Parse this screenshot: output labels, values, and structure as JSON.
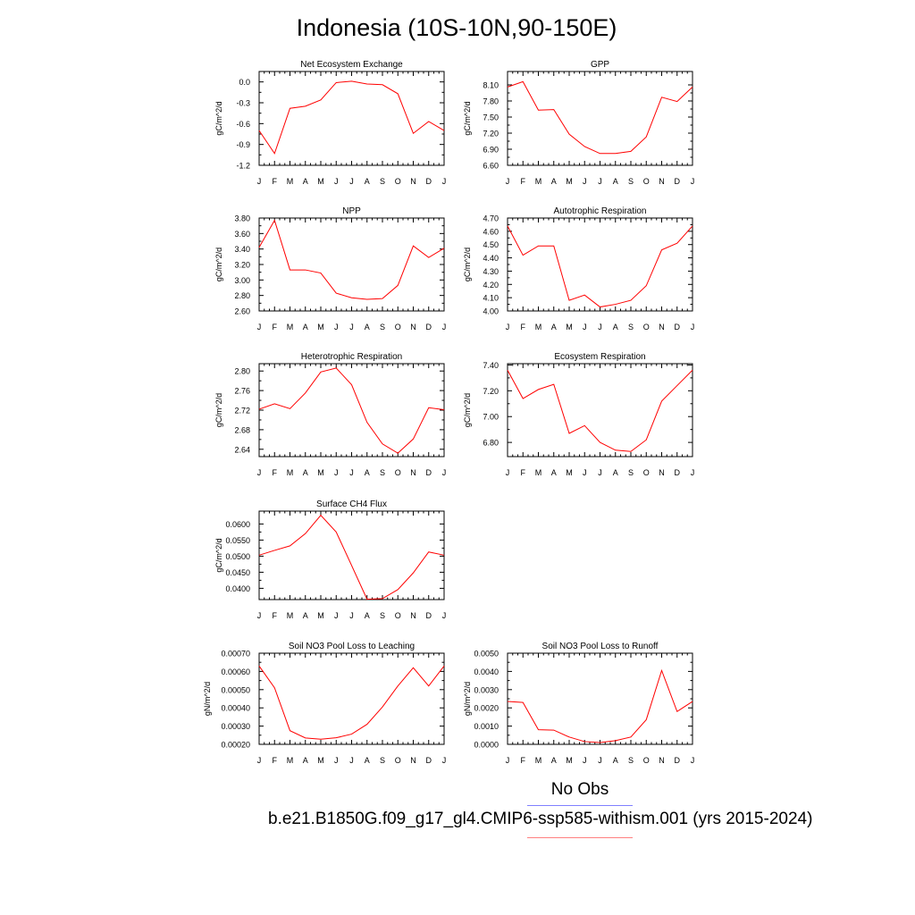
{
  "page": {
    "title": "Indonesia (10S-10N,90-150E)",
    "legend_obs_label": "No Obs",
    "legend_case_label": "b.e21.B1850G.f09_g17_gl4.CMIP6-ssp585-withism.001 (yrs 2015-2024)",
    "obs_line_color": "#8080ff",
    "case_line_color": "#ff8080"
  },
  "chart_data": [
    {
      "type": "line",
      "title": "Net Ecosystem Exchange",
      "ylabel": "gC/m^2/d",
      "categories": [
        "J",
        "F",
        "M",
        "A",
        "M",
        "J",
        "J",
        "A",
        "S",
        "O",
        "N",
        "D",
        "J"
      ],
      "yticks": [
        "0.0",
        "-0.3",
        "-0.6",
        "-0.9",
        "-1.2"
      ],
      "ylim": [
        -1.2,
        0.15
      ],
      "values": [
        -0.7,
        -1.03,
        -0.38,
        -0.35,
        -0.26,
        -0.01,
        0.01,
        -0.03,
        -0.04,
        -0.17,
        -0.74,
        -0.57,
        -0.7
      ],
      "line_color": "#ff0000"
    },
    {
      "type": "line",
      "title": "GPP",
      "ylabel": "gC/m^2/d",
      "categories": [
        "J",
        "F",
        "M",
        "A",
        "M",
        "J",
        "J",
        "A",
        "S",
        "O",
        "N",
        "D",
        "J"
      ],
      "yticks": [
        "8.10",
        "7.80",
        "7.50",
        "7.20",
        "6.90",
        "6.60"
      ],
      "ylim": [
        6.6,
        8.35
      ],
      "values": [
        8.06,
        8.16,
        7.63,
        7.64,
        7.18,
        6.95,
        6.82,
        6.82,
        6.86,
        7.13,
        7.87,
        7.79,
        8.06
      ],
      "line_color": "#ff0000"
    },
    {
      "type": "line",
      "title": "NPP",
      "ylabel": "gC/m^2/d",
      "categories": [
        "J",
        "F",
        "M",
        "A",
        "M",
        "J",
        "J",
        "A",
        "S",
        "O",
        "N",
        "D",
        "J"
      ],
      "yticks": [
        "3.80",
        "3.60",
        "3.40",
        "3.20",
        "3.00",
        "2.80",
        "2.60"
      ],
      "ylim": [
        2.6,
        3.8
      ],
      "values": [
        3.42,
        3.77,
        3.13,
        3.13,
        3.09,
        2.83,
        2.77,
        2.75,
        2.76,
        2.93,
        3.44,
        3.29,
        3.41
      ],
      "line_color": "#ff0000"
    },
    {
      "type": "line",
      "title": "Autotrophic Respiration",
      "ylabel": "gC/m^2/d",
      "categories": [
        "J",
        "F",
        "M",
        "A",
        "M",
        "J",
        "J",
        "A",
        "S",
        "O",
        "N",
        "D",
        "J"
      ],
      "yticks": [
        "4.70",
        "4.60",
        "4.50",
        "4.40",
        "4.30",
        "4.20",
        "4.10",
        "4.00"
      ],
      "ylim": [
        4.0,
        4.7
      ],
      "values": [
        4.64,
        4.42,
        4.49,
        4.49,
        4.08,
        4.12,
        4.03,
        4.05,
        4.08,
        4.19,
        4.46,
        4.51,
        4.64
      ],
      "line_color": "#ff0000"
    },
    {
      "type": "line",
      "title": "Heterotrophic Respiration",
      "ylabel": "gC/m^2/d",
      "categories": [
        "J",
        "F",
        "M",
        "A",
        "M",
        "J",
        "J",
        "A",
        "S",
        "O",
        "N",
        "D",
        "J"
      ],
      "yticks": [
        "2.80",
        "2.76",
        "2.72",
        "2.68",
        "2.64"
      ],
      "ylim": [
        2.625,
        2.815
      ],
      "values": [
        2.722,
        2.733,
        2.723,
        2.755,
        2.798,
        2.806,
        2.772,
        2.695,
        2.651,
        2.632,
        2.661,
        2.725,
        2.721
      ],
      "line_color": "#ff0000"
    },
    {
      "type": "line",
      "title": "Ecosystem Respiration",
      "ylabel": "gC/m^2/d",
      "categories": [
        "J",
        "F",
        "M",
        "A",
        "M",
        "J",
        "J",
        "A",
        "S",
        "O",
        "N",
        "D",
        "J"
      ],
      "yticks": [
        "7.40",
        "7.20",
        "7.00",
        "6.80"
      ],
      "ylim": [
        6.69,
        7.41
      ],
      "values": [
        7.36,
        7.14,
        7.21,
        7.25,
        6.87,
        6.93,
        6.8,
        6.74,
        6.73,
        6.82,
        7.12,
        7.24,
        7.36
      ],
      "line_color": "#ff0000"
    },
    {
      "type": "line",
      "title": "Surface CH4 Flux",
      "ylabel": "gC/m^2/d",
      "categories": [
        "J",
        "F",
        "M",
        "A",
        "M",
        "J",
        "J",
        "A",
        "S",
        "O",
        "N",
        "D",
        "J"
      ],
      "yticks": [
        "0.0600",
        "0.0550",
        "0.0500",
        "0.0450",
        "0.0400"
      ],
      "ylim": [
        0.0365,
        0.064
      ],
      "values": [
        0.0503,
        0.0518,
        0.0532,
        0.057,
        0.0627,
        0.0575,
        0.0471,
        0.0366,
        0.0368,
        0.0396,
        0.0448,
        0.0513,
        0.0503
      ],
      "line_color": "#ff0000"
    },
    {
      "type": "line",
      "title": "Soil NO3 Pool Loss to Leaching",
      "ylabel": "gN/m^2/d",
      "categories": [
        "J",
        "F",
        "M",
        "A",
        "M",
        "J",
        "J",
        "A",
        "S",
        "O",
        "N",
        "D",
        "J"
      ],
      "yticks": [
        "0.00070",
        "0.00060",
        "0.00050",
        "0.00040",
        "0.00030",
        "0.00020"
      ],
      "ylim": [
        0.0002,
        0.0007
      ],
      "values": [
        0.00063,
        0.00051,
        0.000275,
        0.000235,
        0.000228,
        0.000236,
        0.000256,
        0.00031,
        0.000405,
        0.00052,
        0.00062,
        0.00052,
        0.00063
      ],
      "line_color": "#ff0000"
    },
    {
      "type": "line",
      "title": "Soil NO3 Pool Loss to Runoff",
      "ylabel": "gN/m^2/d",
      "categories": [
        "J",
        "F",
        "M",
        "A",
        "M",
        "J",
        "J",
        "A",
        "S",
        "O",
        "N",
        "D",
        "J"
      ],
      "yticks": [
        "0.0050",
        "0.0040",
        "0.0030",
        "0.0020",
        "0.0010",
        "0.0000"
      ],
      "ylim": [
        0.0,
        0.005
      ],
      "values": [
        0.00235,
        0.0023,
        0.0008,
        0.00078,
        0.0004,
        0.00015,
        0.0001,
        0.0002,
        0.0004,
        0.00135,
        0.00405,
        0.0018,
        0.00235
      ],
      "line_color": "#ff0000"
    }
  ]
}
